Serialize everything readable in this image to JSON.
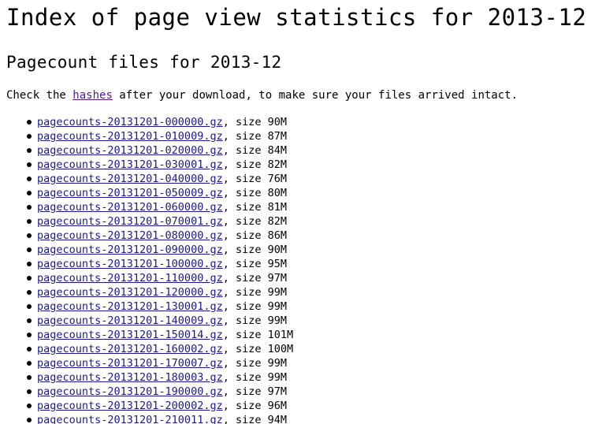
{
  "header": {
    "title": "Index of page view statistics for 2013-12",
    "subtitle": "Pagecount files for 2013-12"
  },
  "intro": {
    "before": "Check the ",
    "link": "hashes",
    "after": " after your download, to make sure your files arrived intact."
  },
  "size_prefix": ", size ",
  "files": [
    {
      "name": "pagecounts-20131201-000000.gz",
      "size": "90M"
    },
    {
      "name": "pagecounts-20131201-010009.gz",
      "size": "87M"
    },
    {
      "name": "pagecounts-20131201-020000.gz",
      "size": "84M"
    },
    {
      "name": "pagecounts-20131201-030001.gz",
      "size": "82M"
    },
    {
      "name": "pagecounts-20131201-040000.gz",
      "size": "76M"
    },
    {
      "name": "pagecounts-20131201-050009.gz",
      "size": "80M"
    },
    {
      "name": "pagecounts-20131201-060000.gz",
      "size": "81M"
    },
    {
      "name": "pagecounts-20131201-070001.gz",
      "size": "82M"
    },
    {
      "name": "pagecounts-20131201-080000.gz",
      "size": "86M"
    },
    {
      "name": "pagecounts-20131201-090000.gz",
      "size": "90M"
    },
    {
      "name": "pagecounts-20131201-100000.gz",
      "size": "95M"
    },
    {
      "name": "pagecounts-20131201-110000.gz",
      "size": "97M"
    },
    {
      "name": "pagecounts-20131201-120000.gz",
      "size": "99M"
    },
    {
      "name": "pagecounts-20131201-130001.gz",
      "size": "99M"
    },
    {
      "name": "pagecounts-20131201-140009.gz",
      "size": "99M"
    },
    {
      "name": "pagecounts-20131201-150014.gz",
      "size": "101M"
    },
    {
      "name": "pagecounts-20131201-160002.gz",
      "size": "100M"
    },
    {
      "name": "pagecounts-20131201-170007.gz",
      "size": "99M"
    },
    {
      "name": "pagecounts-20131201-180003.gz",
      "size": "99M"
    },
    {
      "name": "pagecounts-20131201-190000.gz",
      "size": "97M"
    },
    {
      "name": "pagecounts-20131201-200002.gz",
      "size": "96M"
    },
    {
      "name": "pagecounts-20131201-210011.gz",
      "size": "94M"
    }
  ],
  "colors": {
    "link": "#1a1a8c",
    "visited_link": "#551a8b",
    "text": "#000000",
    "background": "#ffffff"
  }
}
